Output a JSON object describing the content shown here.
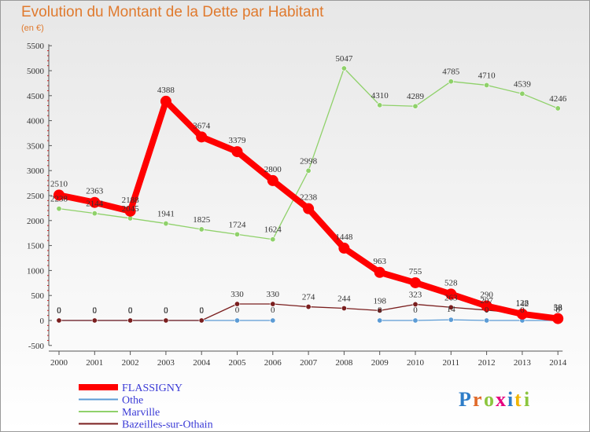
{
  "chart_data": {
    "type": "line",
    "title": "Evolution du Montant de la Dette par Habitant",
    "unit": "(en €)",
    "ylim": [
      -500,
      5500
    ],
    "yticks": [
      -500,
      0,
      500,
      1000,
      1500,
      2000,
      2500,
      3000,
      3500,
      4000,
      4500,
      5000,
      5500
    ],
    "x": [
      "2000",
      "2001",
      "2002",
      "2003",
      "2004",
      "2005",
      "2006",
      "2007",
      "2008",
      "2009",
      "2010",
      "2011",
      "2012",
      "2013",
      "2014"
    ],
    "grid": false,
    "legend_position": "bottom-left",
    "series": [
      {
        "name": "FLASSIGNY",
        "color": "#ff0000",
        "values": [
          2510,
          2363,
          2188,
          4388,
          3674,
          3379,
          2800,
          2238,
          1448,
          963,
          755,
          528,
          290,
          128,
          38
        ]
      },
      {
        "name": "Othe",
        "color": "#5b9bd5",
        "values": [
          0,
          0,
          0,
          0,
          0,
          0,
          0,
          null,
          null,
          0,
          0,
          14,
          0,
          0,
          0
        ]
      },
      {
        "name": "Marville",
        "color": "#8fd16a",
        "values": [
          2238,
          2144,
          2045,
          1941,
          1825,
          1724,
          1624,
          2998,
          5047,
          4310,
          4289,
          4785,
          4710,
          4539,
          4246
        ]
      },
      {
        "name": "Bazeilles-sur-Othain",
        "color": "#7a1e1e",
        "values": [
          0,
          0,
          0,
          0,
          0,
          330,
          330,
          274,
          244,
          198,
          323,
          263,
          207,
          142,
          58
        ]
      }
    ]
  },
  "logo": {
    "text": "Proxiti",
    "letter_colors": [
      "#2e7dc8",
      "#e06a2a",
      "#8cc63f",
      "#e5007e",
      "#2e7dc8",
      "#f0b400",
      "#8cc63f"
    ]
  }
}
